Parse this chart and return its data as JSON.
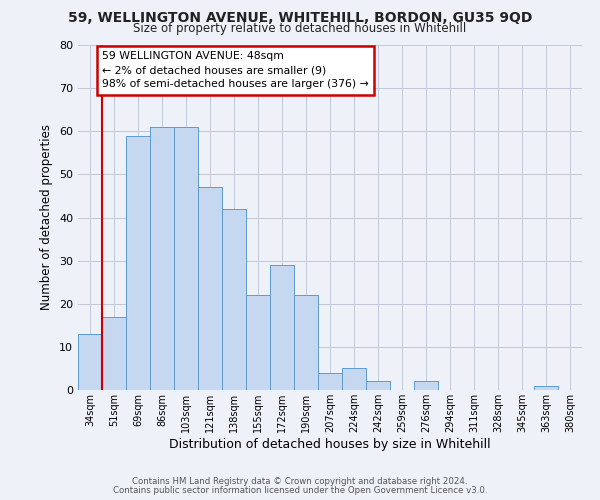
{
  "title": "59, WELLINGTON AVENUE, WHITEHILL, BORDON, GU35 9QD",
  "subtitle": "Size of property relative to detached houses in Whitehill",
  "xlabel": "Distribution of detached houses by size in Whitehill",
  "ylabel": "Number of detached properties",
  "bin_labels": [
    "34sqm",
    "51sqm",
    "69sqm",
    "86sqm",
    "103sqm",
    "121sqm",
    "138sqm",
    "155sqm",
    "172sqm",
    "190sqm",
    "207sqm",
    "224sqm",
    "242sqm",
    "259sqm",
    "276sqm",
    "294sqm",
    "311sqm",
    "328sqm",
    "345sqm",
    "363sqm",
    "380sqm"
  ],
  "bar_values": [
    13,
    17,
    59,
    61,
    61,
    47,
    42,
    22,
    29,
    22,
    4,
    5,
    2,
    0,
    2,
    0,
    0,
    0,
    0,
    1,
    0
  ],
  "bar_color": "#c5d8f0",
  "bar_edge_color": "#5b9bd5",
  "ylim": [
    0,
    80
  ],
  "yticks": [
    0,
    10,
    20,
    30,
    40,
    50,
    60,
    70,
    80
  ],
  "property_line_x": 1,
  "property_line_color": "#cc0000",
  "annotation_title": "59 WELLINGTON AVENUE: 48sqm",
  "annotation_line1": "← 2% of detached houses are smaller (9)",
  "annotation_line2": "98% of semi-detached houses are larger (376) →",
  "annotation_box_color": "#cc0000",
  "footer_line1": "Contains HM Land Registry data © Crown copyright and database right 2024.",
  "footer_line2": "Contains public sector information licensed under the Open Government Licence v3.0.",
  "background_color": "#eef2f8",
  "plot_background_color": "#eef2f8"
}
